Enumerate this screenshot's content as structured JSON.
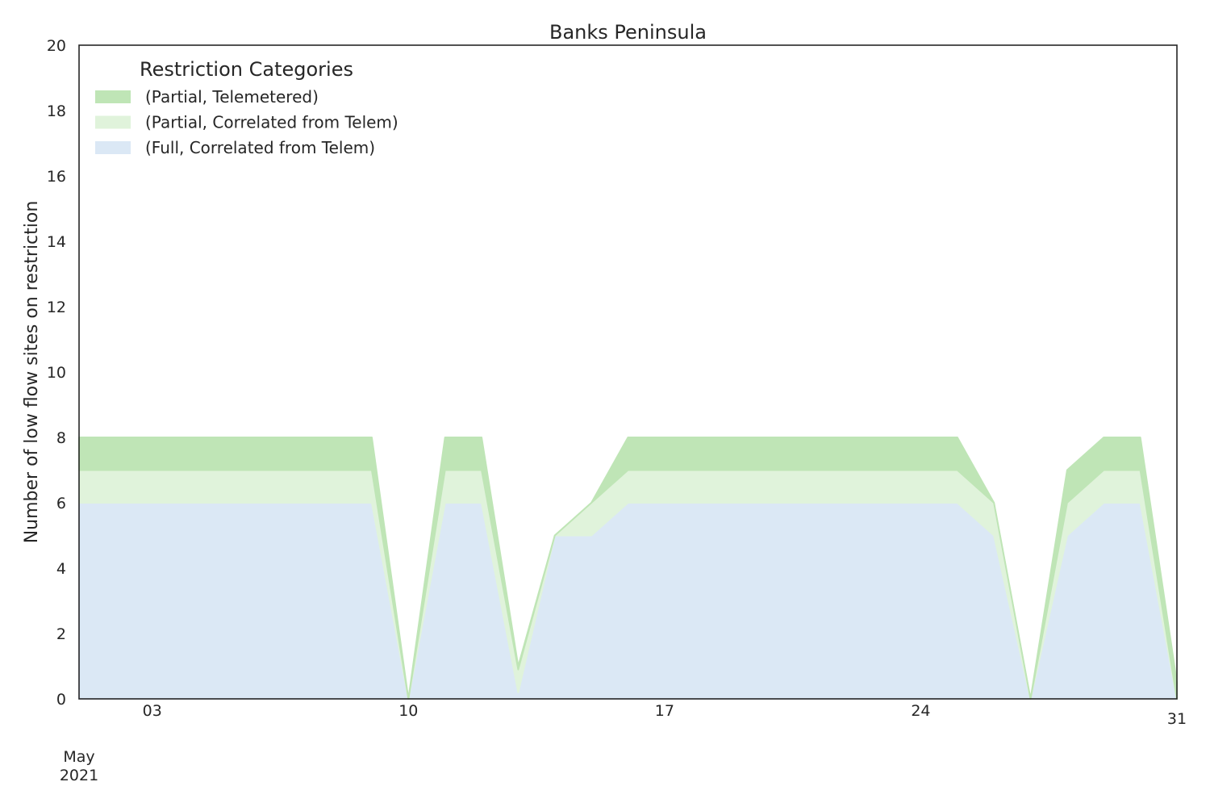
{
  "chart_data": {
    "type": "area",
    "stacked": true,
    "title": "Banks Peninsula",
    "xlabel": "",
    "ylabel": "Number of low flow sites on restriction",
    "x": [
      "2021-05-01",
      "2021-05-02",
      "2021-05-03",
      "2021-05-04",
      "2021-05-05",
      "2021-05-06",
      "2021-05-07",
      "2021-05-08",
      "2021-05-09",
      "2021-05-10",
      "2021-05-11",
      "2021-05-12",
      "2021-05-13",
      "2021-05-14",
      "2021-05-15",
      "2021-05-16",
      "2021-05-17",
      "2021-05-18",
      "2021-05-19",
      "2021-05-20",
      "2021-05-21",
      "2021-05-22",
      "2021-05-23",
      "2021-05-24",
      "2021-05-25",
      "2021-05-26",
      "2021-05-27",
      "2021-05-28",
      "2021-05-29",
      "2021-05-30",
      "2021-05-31"
    ],
    "xlim": [
      "2021-05-01",
      "2021-05-31"
    ],
    "x_ticks": [
      {
        "date": "2021-05-03",
        "label": "03"
      },
      {
        "date": "2021-05-10",
        "label": "10"
      },
      {
        "date": "2021-05-17",
        "label": "17"
      },
      {
        "date": "2021-05-24",
        "label": "24"
      },
      {
        "date": "2021-05-31",
        "label": "31"
      }
    ],
    "x_secondary_label": [
      "May",
      "2021"
    ],
    "ylim": [
      0,
      20
    ],
    "y_ticks": [
      0,
      2,
      4,
      6,
      8,
      10,
      12,
      14,
      16,
      18,
      20
    ],
    "grid": false,
    "legend": {
      "title": "Restriction Categories",
      "placement": "top-left"
    },
    "series": [
      {
        "name": "(Full, Correlated from Telem)",
        "color": "#dbe8f5",
        "values": [
          6,
          6,
          6,
          6,
          6,
          6,
          6,
          6,
          6,
          0,
          6,
          6,
          0.2,
          5,
          5,
          6,
          6,
          6,
          6,
          6,
          6,
          6,
          6,
          6,
          6,
          5,
          0,
          5,
          6,
          6,
          0
        ]
      },
      {
        "name": "(Partial, Correlated from Telem)",
        "color": "#e0f3db",
        "values": [
          1,
          1,
          1,
          1,
          1,
          1,
          1,
          1,
          1,
          0,
          1,
          1,
          0.7,
          0,
          1,
          1,
          1,
          1,
          1,
          1,
          1,
          1,
          1,
          1,
          1,
          1,
          0,
          1,
          1,
          1,
          0
        ]
      },
      {
        "name": "(Partial, Telemetered)",
        "color": "#bfe5b6",
        "values": [
          1,
          1,
          1,
          1,
          1,
          1,
          1,
          1,
          1,
          0,
          1,
          1,
          0.1,
          0,
          0,
          1,
          1,
          1,
          1,
          1,
          1,
          1,
          1,
          1,
          1,
          0,
          0,
          1,
          1,
          1,
          0.5
        ]
      }
    ],
    "legend_order": [
      "(Partial, Telemetered)",
      "(Partial, Correlated from Telem)",
      "(Full, Correlated from Telem)"
    ]
  }
}
